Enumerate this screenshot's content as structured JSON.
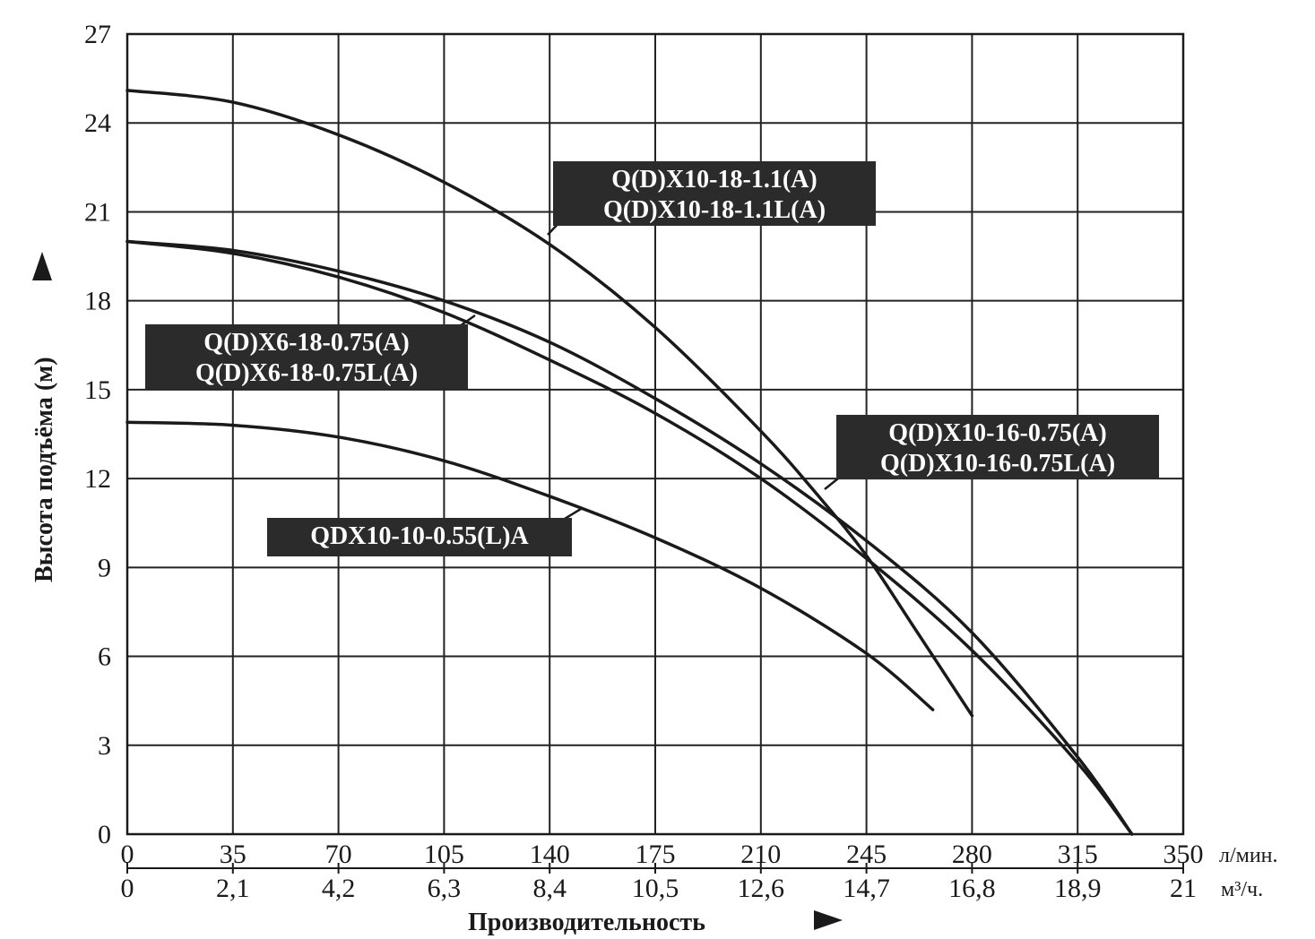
{
  "chart_data": {
    "type": "line",
    "xlabel": "Производительность",
    "ylabel": "Высота подъёма (м)",
    "x_unit": "л/мин.",
    "x2_unit": "м³/ч.",
    "xlim": [
      0,
      350
    ],
    "ylim": [
      0,
      27
    ],
    "grid": true,
    "x_ticks": [
      0,
      35,
      70,
      105,
      140,
      175,
      210,
      245,
      280,
      315,
      350
    ],
    "x_tick_labels": [
      "0",
      "35",
      "70",
      "105",
      "140",
      "175",
      "210",
      "245",
      "280",
      "315",
      "350"
    ],
    "x2_tick_labels": [
      "0",
      "2,1",
      "4,2",
      "6,3",
      "8,4",
      "10,5",
      "12,6",
      "14,7",
      "16,8",
      "18,9",
      "21"
    ],
    "y_ticks": [
      0,
      3,
      6,
      9,
      12,
      15,
      18,
      21,
      24,
      27
    ],
    "y_tick_labels": [
      "0",
      "3",
      "6",
      "9",
      "12",
      "15",
      "18",
      "21",
      "24",
      "27"
    ],
    "series": [
      {
        "name": "Q(D)X10-18-1.1(A) / Q(D)X10-18-1.1L(A)",
        "x": [
          0,
          35,
          70,
          105,
          140,
          175,
          210,
          230,
          245,
          260,
          280
        ],
        "y": [
          25.1,
          24.7,
          23.6,
          22.0,
          19.9,
          17.1,
          13.6,
          11.3,
          9.4,
          7.1,
          4.0
        ]
      },
      {
        "name": "Q(D)X10-16-0.75(A) / Q(D)X10-16-0.75L(A)",
        "x": [
          0,
          35,
          70,
          105,
          140,
          175,
          210,
          245,
          280,
          315,
          333
        ],
        "y": [
          20.0,
          19.7,
          19.0,
          18.0,
          16.6,
          14.7,
          12.5,
          9.9,
          6.8,
          2.6,
          0
        ]
      },
      {
        "name": "Q(D)X6-18-0.75(A) / Q(D)X6-18-0.75L(A)",
        "x": [
          0,
          35,
          70,
          105,
          140,
          175,
          210,
          245,
          280,
          315,
          333
        ],
        "y": [
          20.0,
          19.6,
          18.8,
          17.6,
          16.0,
          14.2,
          12.0,
          9.3,
          6.2,
          2.4,
          0
        ]
      },
      {
        "name": "QDX10-10-0.55(L)A",
        "x": [
          0,
          35,
          70,
          105,
          140,
          175,
          210,
          245,
          267
        ],
        "y": [
          13.9,
          13.8,
          13.4,
          12.6,
          11.4,
          10.0,
          8.3,
          6.1,
          4.2
        ]
      }
    ],
    "annotations": [
      {
        "lines": [
          "Q(D)X10-18-1.1(A)",
          "Q(D)X10-18-1.1L(A)"
        ]
      },
      {
        "lines": [
          "Q(D)X6-18-0.75(A)",
          "Q(D)X6-18-0.75L(A)"
        ]
      },
      {
        "lines": [
          "Q(D)X10-16-0.75(A)",
          "Q(D)X10-16-0.75L(A)"
        ]
      },
      {
        "lines": [
          "QDX10-10-0.55(L)A"
        ]
      }
    ]
  }
}
